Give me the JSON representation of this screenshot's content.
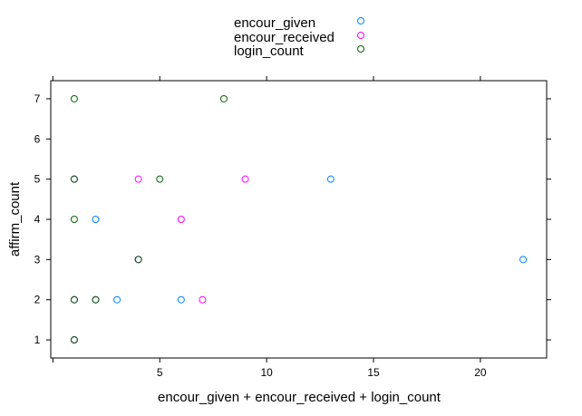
{
  "chart_data": {
    "type": "scatter",
    "title": "",
    "xlabel": "encour_given + encour_received + login_count",
    "ylabel": "affirm_count",
    "xlim": [
      -0.1,
      23.1
    ],
    "ylim": [
      0.55,
      7.45
    ],
    "x_ticks": [
      5,
      10,
      15,
      20
    ],
    "y_ticks": [
      1,
      2,
      3,
      4,
      5,
      6,
      7
    ],
    "grid": false,
    "legend_position": "top",
    "series": [
      {
        "name": "encour_given",
        "color": "#0080ff",
        "points": [
          {
            "x": 1,
            "y": 1
          },
          {
            "x": 1,
            "y": 2
          },
          {
            "x": 1,
            "y": 5
          },
          {
            "x": 2,
            "y": 2
          },
          {
            "x": 2,
            "y": 4
          },
          {
            "x": 3,
            "y": 2
          },
          {
            "x": 4,
            "y": 3
          },
          {
            "x": 6,
            "y": 2
          },
          {
            "x": 13,
            "y": 5
          },
          {
            "x": 22,
            "y": 3
          }
        ]
      },
      {
        "name": "encour_received",
        "color": "#ff00ff",
        "points": [
          {
            "x": 1,
            "y": 1
          },
          {
            "x": 1,
            "y": 2
          },
          {
            "x": 1,
            "y": 5
          },
          {
            "x": 2,
            "y": 2
          },
          {
            "x": 4,
            "y": 3
          },
          {
            "x": 4,
            "y": 5
          },
          {
            "x": 6,
            "y": 4
          },
          {
            "x": 7,
            "y": 2
          },
          {
            "x": 9,
            "y": 5
          }
        ]
      },
      {
        "name": "login_count",
        "color": "#006400",
        "points": [
          {
            "x": 1,
            "y": 1
          },
          {
            "x": 1,
            "y": 2
          },
          {
            "x": 1,
            "y": 4
          },
          {
            "x": 1,
            "y": 5
          },
          {
            "x": 1,
            "y": 7
          },
          {
            "x": 2,
            "y": 2
          },
          {
            "x": 4,
            "y": 3
          },
          {
            "x": 5,
            "y": 5
          },
          {
            "x": 8,
            "y": 7
          }
        ]
      }
    ]
  }
}
